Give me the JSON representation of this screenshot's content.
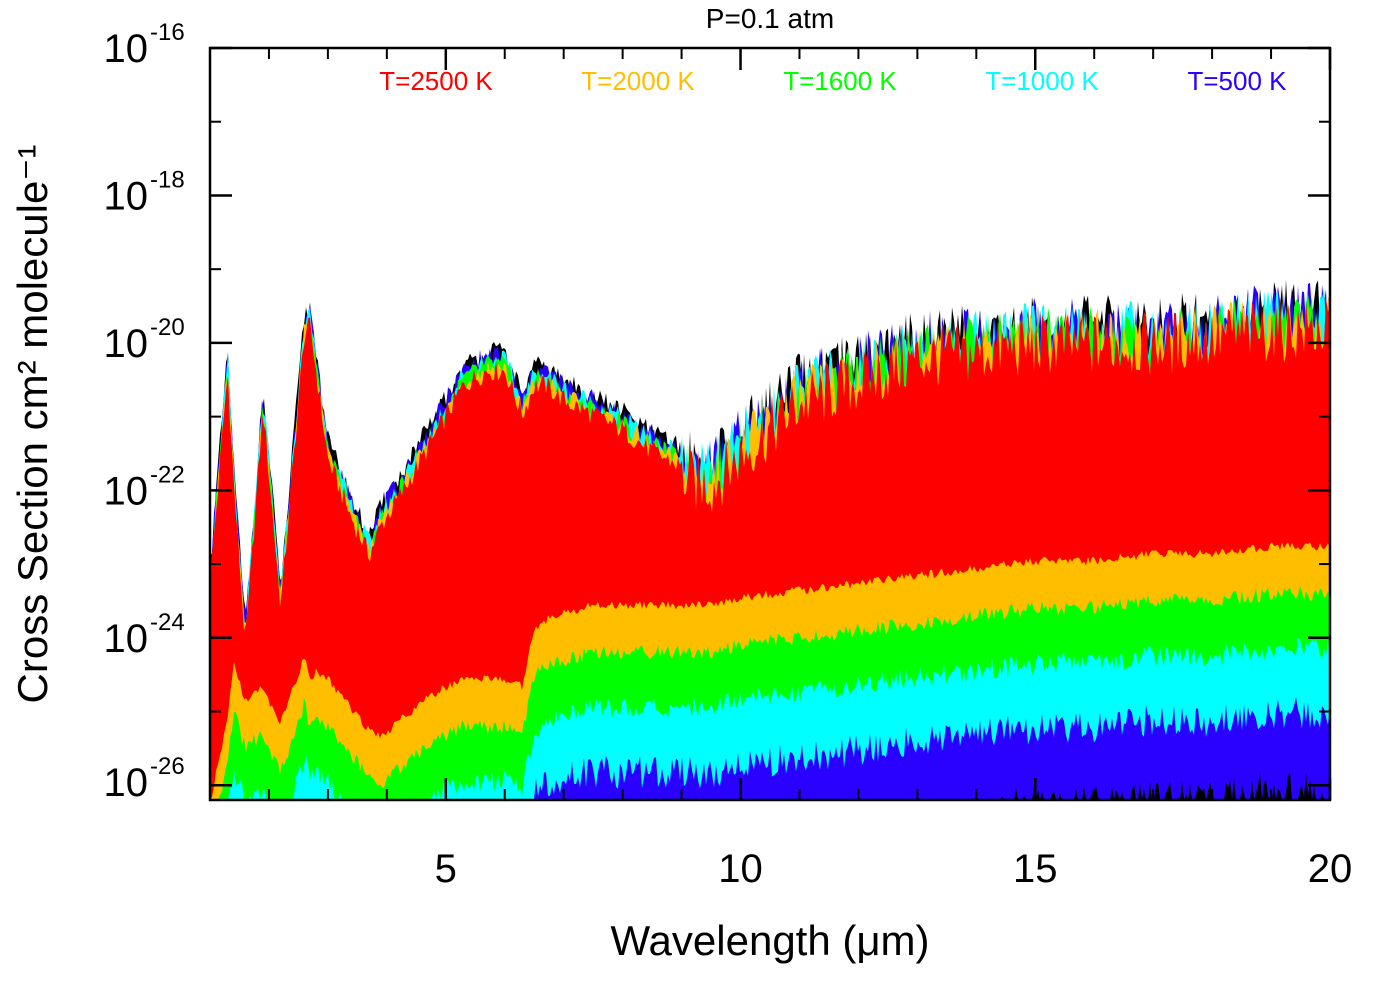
{
  "chart_data": {
    "type": "area",
    "title": "P=0.1 atm",
    "xlabel": "Wavelength (μm)",
    "ylabel": "Cross Section cm² molecule⁻¹",
    "xlim": [
      1,
      20
    ],
    "ylim_log10": [
      -26.2,
      -16
    ],
    "yscale": "log",
    "xticks": [
      5,
      10,
      15,
      20
    ],
    "xtick_labels": [
      "5",
      "10",
      "15",
      "20"
    ],
    "yticks_log10": [
      -16,
      -18,
      -20,
      -22,
      -24,
      -26
    ],
    "ytick_mantissa": "10",
    "ytick_exponents": [
      "-16",
      "-18",
      "-20",
      "-22",
      "-24",
      "-26"
    ],
    "legend_position": "top",
    "series": [
      {
        "name": "T=2500 K",
        "color": "#ff0000"
      },
      {
        "name": "T=2000 K",
        "color": "#ffbf00"
      },
      {
        "name": "T=1600 K",
        "color": "#00ff00"
      },
      {
        "name": "T=1000 K",
        "color": "#00ffff"
      },
      {
        "name": "T=500 K",
        "color": "#2a00ff"
      }
    ],
    "envelope_x": [
      1.0,
      1.3,
      1.4,
      1.6,
      1.9,
      2.0,
      2.2,
      2.6,
      2.7,
      2.8,
      3.0,
      3.4,
      3.7,
      3.9,
      4.3,
      4.8,
      5.3,
      5.7,
      6.0,
      6.3,
      6.5,
      6.7,
      7.0,
      7.5,
      8.0,
      8.5,
      9.0,
      9.5,
      10.0,
      11.0,
      12.0,
      13.0,
      14.0,
      15.0,
      16.0,
      17.0,
      18.0,
      19.0,
      20.0
    ],
    "upper_log10": [
      -23.2,
      -20.3,
      -21.8,
      -24.0,
      -20.8,
      -21.7,
      -23.5,
      -19.8,
      -19.7,
      -20.3,
      -21.5,
      -22.3,
      -22.8,
      -22.4,
      -21.9,
      -21.2,
      -20.5,
      -20.3,
      -20.3,
      -20.9,
      -20.5,
      -20.5,
      -20.7,
      -20.9,
      -21.1,
      -21.4,
      -21.6,
      -21.7,
      -21.3,
      -20.6,
      -20.3,
      -20.0,
      -19.9,
      -19.8,
      -19.8,
      -19.8,
      -19.7,
      -19.6,
      -19.6
    ],
    "red_lower_log10": [
      -26.2,
      -25.0,
      -24.3,
      -24.8,
      -24.6,
      -24.8,
      -25.1,
      -24.2,
      -24.5,
      -24.4,
      -24.5,
      -24.9,
      -25.2,
      -25.3,
      -25.0,
      -24.7,
      -24.5,
      -24.5,
      -24.5,
      -24.6,
      -23.8,
      -23.7,
      -23.6,
      -23.5,
      -23.5,
      -23.5,
      -23.5,
      -23.5,
      -23.4,
      -23.3,
      -23.2,
      -23.1,
      -23.0,
      -22.9,
      -22.9,
      -22.8,
      -22.8,
      -22.7,
      -22.7
    ],
    "color_offsets_log10": {
      "T=2000 K": 0.6,
      "T=1600 K": 1.3,
      "T=1000 K": 2.1,
      "T=500 K": 3.1
    }
  }
}
